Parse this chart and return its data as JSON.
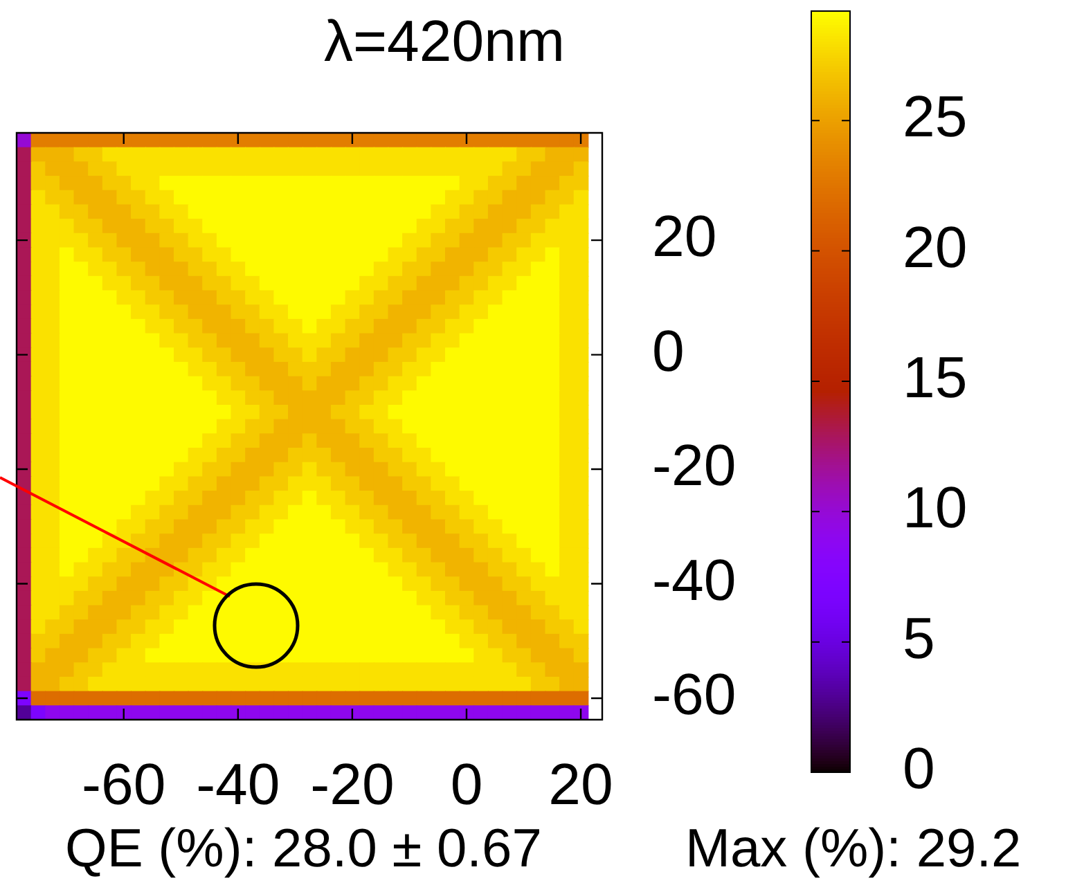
{
  "chart_data": {
    "type": "heatmap",
    "title": "λ=420nm",
    "categories": [
      null,
      null,
      null,
      null,
      null,
      null,
      null,
      "-60",
      null,
      null,
      null,
      null,
      null,
      null,
      null,
      "-40",
      null,
      null,
      null,
      null,
      null,
      null,
      null,
      "-20",
      null,
      null,
      null,
      null,
      null,
      null,
      null,
      "0",
      null,
      null,
      null,
      null,
      null,
      null,
      null,
      "20",
      null
    ],
    "y_categories": [
      null,
      null,
      null,
      null,
      null,
      null,
      null,
      "20",
      null,
      null,
      null,
      null,
      null,
      null,
      null,
      "0",
      null,
      null,
      null,
      null,
      null,
      null,
      null,
      "-20",
      null,
      null,
      null,
      null,
      null,
      null,
      null,
      "-40",
      null,
      null,
      null,
      null,
      null,
      null,
      null,
      "-60",
      null
    ],
    "clim": [
      0,
      29.2
    ],
    "cticks": [
      0,
      5,
      10,
      15,
      20,
      25
    ],
    "annotations": [
      "QE (%): 28.0 ± 0.67",
      "Max (%): 29.2"
    ],
    "cells": [
      [
        10,
        23,
        23,
        23,
        23,
        23,
        23,
        23,
        23,
        23,
        23,
        23,
        23,
        23,
        23,
        23,
        23,
        23,
        23,
        23,
        23,
        23,
        23,
        23,
        23,
        23,
        23,
        23,
        23,
        23,
        23,
        23,
        23,
        23,
        23,
        23,
        23,
        23,
        23,
        23,
        null
      ],
      [
        13,
        26,
        26,
        26,
        27,
        27,
        28,
        28,
        28,
        28,
        28,
        28,
        28,
        28,
        28,
        28,
        28,
        28,
        28,
        28,
        28,
        28,
        28,
        28,
        28,
        28,
        28,
        28,
        28,
        28,
        28,
        28,
        28,
        28,
        28,
        27,
        27,
        26,
        26,
        26,
        null
      ],
      [
        13,
        27,
        26,
        26,
        26,
        27,
        27,
        28,
        28,
        28,
        28,
        28,
        28,
        28,
        28,
        28,
        28,
        28,
        28,
        28,
        28,
        28,
        28,
        28,
        28,
        28,
        28,
        28,
        28,
        28,
        28,
        28,
        28,
        28,
        27,
        27,
        26,
        26,
        26,
        27,
        null
      ],
      [
        13,
        27,
        27,
        26,
        26,
        26,
        27,
        27,
        28,
        28,
        29,
        29,
        29,
        29,
        29,
        29,
        29,
        29,
        29,
        29,
        29,
        29,
        29,
        29,
        29,
        29,
        29,
        29,
        29,
        29,
        29,
        28,
        28,
        27,
        27,
        26,
        26,
        26,
        27,
        27,
        null
      ],
      [
        13,
        28,
        27,
        27,
        26,
        26,
        26,
        27,
        27,
        28,
        28,
        29,
        29,
        29,
        29,
        29,
        29,
        29,
        29,
        29,
        29,
        29,
        29,
        29,
        29,
        29,
        29,
        29,
        29,
        29,
        28,
        28,
        27,
        27,
        26,
        26,
        26,
        27,
        27,
        28,
        null
      ],
      [
        13,
        28,
        28,
        27,
        27,
        26,
        26,
        26,
        27,
        27,
        28,
        28,
        29,
        29,
        29,
        29,
        29,
        29,
        29,
        29,
        29,
        29,
        29,
        29,
        29,
        29,
        29,
        29,
        29,
        28,
        28,
        27,
        27,
        26,
        26,
        26,
        27,
        27,
        28,
        28,
        null
      ],
      [
        13,
        28,
        28,
        28,
        27,
        27,
        26,
        26,
        26,
        27,
        27,
        28,
        28,
        29,
        29,
        29,
        29,
        29,
        29,
        29,
        29,
        29,
        29,
        29,
        29,
        29,
        29,
        29,
        28,
        28,
        27,
        27,
        26,
        26,
        26,
        27,
        27,
        28,
        28,
        28,
        null
      ],
      [
        13,
        28,
        28,
        28,
        28,
        27,
        27,
        26,
        26,
        26,
        27,
        27,
        28,
        28,
        29,
        29,
        29,
        29,
        29,
        29,
        29,
        29,
        29,
        29,
        29,
        29,
        29,
        28,
        28,
        27,
        27,
        26,
        26,
        26,
        27,
        27,
        28,
        28,
        28,
        28,
        null
      ],
      [
        13,
        28,
        28,
        29,
        28,
        28,
        27,
        27,
        26,
        26,
        26,
        27,
        27,
        28,
        28,
        29,
        29,
        29,
        29,
        29,
        29,
        29,
        29,
        29,
        29,
        29,
        28,
        28,
        27,
        27,
        26,
        26,
        26,
        27,
        27,
        28,
        28,
        29,
        28,
        28,
        null
      ],
      [
        13,
        28,
        28,
        29,
        29,
        28,
        28,
        27,
        27,
        26,
        26,
        26,
        27,
        27,
        28,
        28,
        29,
        29,
        29,
        29,
        29,
        29,
        29,
        29,
        29,
        28,
        28,
        27,
        27,
        26,
        26,
        26,
        27,
        27,
        28,
        28,
        29,
        29,
        28,
        28,
        null
      ],
      [
        13,
        28,
        28,
        29,
        29,
        29,
        28,
        28,
        27,
        27,
        26,
        26,
        26,
        27,
        27,
        28,
        28,
        29,
        29,
        29,
        29,
        29,
        29,
        29,
        28,
        28,
        27,
        27,
        26,
        26,
        26,
        27,
        27,
        28,
        28,
        29,
        29,
        29,
        28,
        28,
        null
      ],
      [
        13,
        28,
        28,
        29,
        29,
        29,
        29,
        28,
        28,
        27,
        27,
        26,
        26,
        26,
        27,
        27,
        28,
        28,
        29,
        29,
        29,
        29,
        29,
        28,
        28,
        27,
        27,
        26,
        26,
        26,
        27,
        27,
        28,
        28,
        29,
        29,
        29,
        29,
        28,
        28,
        null
      ],
      [
        13,
        28,
        28,
        29,
        29,
        29,
        29,
        29,
        28,
        28,
        27,
        27,
        26,
        26,
        26,
        27,
        27,
        28,
        28,
        29,
        29,
        29,
        28,
        28,
        27,
        27,
        26,
        26,
        26,
        27,
        27,
        28,
        28,
        29,
        29,
        29,
        29,
        29,
        28,
        28,
        null
      ],
      [
        13,
        28,
        28,
        29,
        29,
        29,
        29,
        29,
        29,
        28,
        28,
        27,
        27,
        26,
        26,
        26,
        27,
        27,
        28,
        28,
        29,
        28,
        28,
        27,
        27,
        26,
        26,
        26,
        27,
        27,
        28,
        28,
        29,
        29,
        29,
        29,
        29,
        29,
        28,
        28,
        null
      ],
      [
        13,
        28,
        28,
        29,
        29,
        29,
        29,
        29,
        29,
        29,
        28,
        28,
        27,
        27,
        26,
        26,
        26,
        27,
        27,
        28,
        28,
        28,
        27,
        27,
        26,
        26,
        26,
        27,
        27,
        28,
        28,
        29,
        29,
        29,
        29,
        29,
        29,
        29,
        28,
        28,
        null
      ],
      [
        13,
        28,
        28,
        29,
        29,
        29,
        29,
        29,
        29,
        29,
        29,
        28,
        28,
        27,
        27,
        26,
        26,
        26,
        27,
        27,
        28,
        27,
        27,
        26,
        26,
        26,
        27,
        27,
        28,
        28,
        29,
        29,
        29,
        29,
        29,
        29,
        29,
        29,
        28,
        28,
        null
      ],
      [
        13,
        28,
        28,
        29,
        29,
        29,
        29,
        29,
        29,
        29,
        29,
        29,
        28,
        28,
        27,
        27,
        26,
        26,
        26,
        27,
        27,
        27,
        26,
        26,
        26,
        27,
        27,
        28,
        28,
        29,
        29,
        29,
        29,
        29,
        29,
        29,
        29,
        29,
        28,
        28,
        null
      ],
      [
        13,
        28,
        28,
        29,
        29,
        29,
        29,
        29,
        29,
        29,
        29,
        29,
        29,
        28,
        28,
        27,
        27,
        26,
        26,
        26,
        27,
        26,
        26,
        26,
        27,
        27,
        28,
        28,
        29,
        29,
        29,
        29,
        29,
        29,
        29,
        29,
        29,
        29,
        28,
        28,
        null
      ],
      [
        13,
        28,
        28,
        29,
        29,
        29,
        29,
        29,
        29,
        29,
        29,
        29,
        29,
        29,
        28,
        28,
        27,
        27,
        26,
        26,
        26,
        26,
        26,
        27,
        27,
        28,
        28,
        29,
        29,
        29,
        29,
        29,
        29,
        29,
        29,
        29,
        29,
        29,
        28,
        28,
        null
      ],
      [
        13,
        28,
        28,
        29,
        29,
        29,
        29,
        29,
        29,
        29,
        29,
        29,
        29,
        29,
        29,
        28,
        28,
        27,
        27,
        26,
        26,
        26,
        27,
        27,
        28,
        28,
        29,
        29,
        29,
        29,
        29,
        29,
        29,
        29,
        29,
        29,
        29,
        29,
        28,
        28,
        null
      ],
      [
        13,
        28,
        28,
        29,
        29,
        29,
        29,
        29,
        29,
        29,
        29,
        29,
        29,
        29,
        28,
        28,
        27,
        27,
        26,
        26,
        26,
        26,
        26,
        27,
        27,
        28,
        28,
        29,
        29,
        29,
        29,
        29,
        29,
        29,
        29,
        29,
        29,
        29,
        28,
        28,
        null
      ],
      [
        13,
        28,
        28,
        29,
        29,
        29,
        29,
        29,
        29,
        29,
        29,
        29,
        29,
        28,
        28,
        27,
        27,
        26,
        26,
        26,
        27,
        26,
        26,
        26,
        27,
        27,
        28,
        28,
        29,
        29,
        29,
        29,
        29,
        29,
        29,
        29,
        29,
        29,
        28,
        28,
        null
      ],
      [
        13,
        28,
        28,
        29,
        29,
        29,
        29,
        29,
        29,
        29,
        29,
        29,
        28,
        28,
        27,
        27,
        26,
        26,
        26,
        27,
        27,
        27,
        26,
        26,
        26,
        27,
        27,
        28,
        28,
        29,
        29,
        29,
        29,
        29,
        29,
        29,
        29,
        29,
        28,
        28,
        null
      ],
      [
        13,
        28,
        28,
        29,
        29,
        29,
        29,
        29,
        29,
        29,
        29,
        28,
        28,
        27,
        27,
        26,
        26,
        26,
        27,
        27,
        28,
        27,
        27,
        26,
        26,
        26,
        27,
        27,
        28,
        28,
        29,
        29,
        29,
        29,
        29,
        29,
        29,
        29,
        28,
        28,
        null
      ],
      [
        13,
        28,
        28,
        29,
        29,
        29,
        29,
        29,
        29,
        29,
        28,
        28,
        27,
        27,
        26,
        26,
        26,
        27,
        27,
        28,
        28,
        28,
        27,
        27,
        26,
        26,
        26,
        27,
        27,
        28,
        28,
        29,
        29,
        29,
        29,
        29,
        29,
        29,
        28,
        28,
        null
      ],
      [
        13,
        28,
        28,
        29,
        29,
        29,
        29,
        29,
        29,
        28,
        28,
        27,
        27,
        26,
        26,
        26,
        27,
        27,
        28,
        28,
        29,
        28,
        28,
        27,
        27,
        26,
        26,
        26,
        27,
        27,
        28,
        28,
        29,
        29,
        29,
        29,
        29,
        29,
        28,
        28,
        null
      ],
      [
        13,
        28,
        28,
        29,
        29,
        29,
        29,
        29,
        28,
        28,
        27,
        27,
        26,
        26,
        26,
        27,
        27,
        28,
        28,
        29,
        29,
        29,
        28,
        28,
        27,
        27,
        26,
        26,
        26,
        27,
        27,
        28,
        28,
        29,
        29,
        29,
        29,
        29,
        28,
        28,
        null
      ],
      [
        13,
        28,
        28,
        29,
        29,
        29,
        29,
        28,
        28,
        27,
        27,
        26,
        26,
        26,
        27,
        27,
        28,
        28,
        29,
        29,
        29,
        29,
        29,
        28,
        28,
        27,
        27,
        26,
        26,
        26,
        27,
        27,
        28,
        28,
        29,
        29,
        29,
        29,
        28,
        28,
        null
      ],
      [
        13,
        28,
        28,
        29,
        29,
        29,
        28,
        28,
        27,
        27,
        26,
        26,
        26,
        27,
        27,
        28,
        28,
        29,
        29,
        29,
        29,
        29,
        29,
        29,
        28,
        28,
        27,
        27,
        26,
        26,
        26,
        27,
        27,
        28,
        28,
        29,
        29,
        29,
        28,
        28,
        null
      ],
      [
        13,
        28,
        28,
        29,
        29,
        28,
        28,
        27,
        27,
        26,
        26,
        26,
        27,
        27,
        28,
        28,
        29,
        29,
        29,
        29,
        29,
        29,
        29,
        29,
        29,
        28,
        28,
        27,
        27,
        26,
        26,
        26,
        27,
        27,
        28,
        28,
        29,
        29,
        28,
        28,
        null
      ],
      [
        13,
        28,
        28,
        29,
        28,
        28,
        27,
        27,
        26,
        26,
        26,
        27,
        27,
        28,
        28,
        29,
        29,
        29,
        29,
        29,
        29,
        29,
        29,
        29,
        29,
        29,
        28,
        28,
        27,
        27,
        26,
        26,
        26,
        27,
        27,
        28,
        28,
        29,
        28,
        28,
        null
      ],
      [
        13,
        28,
        28,
        28,
        28,
        27,
        27,
        26,
        26,
        26,
        27,
        27,
        28,
        28,
        29,
        29,
        29,
        29,
        29,
        29,
        29,
        29,
        29,
        29,
        29,
        29,
        29,
        28,
        28,
        27,
        27,
        26,
        26,
        26,
        27,
        27,
        28,
        28,
        28,
        28,
        null
      ],
      [
        13,
        28,
        28,
        28,
        27,
        27,
        26,
        26,
        26,
        27,
        27,
        28,
        28,
        29,
        29,
        29,
        29,
        29,
        29,
        29,
        29,
        29,
        29,
        29,
        29,
        29,
        29,
        29,
        28,
        28,
        27,
        27,
        26,
        26,
        26,
        27,
        27,
        28,
        28,
        28,
        null
      ],
      [
        13,
        28,
        28,
        27,
        27,
        26,
        26,
        26,
        27,
        27,
        28,
        28,
        29,
        29,
        29,
        29,
        29,
        29,
        29,
        29,
        29,
        29,
        29,
        29,
        29,
        29,
        29,
        29,
        29,
        28,
        28,
        27,
        27,
        26,
        26,
        26,
        27,
        27,
        28,
        28,
        null
      ],
      [
        13,
        28,
        27,
        27,
        26,
        26,
        26,
        27,
        27,
        28,
        28,
        29,
        29,
        29,
        29,
        29,
        29,
        29,
        29,
        29,
        29,
        29,
        29,
        29,
        29,
        29,
        29,
        29,
        29,
        29,
        28,
        28,
        27,
        27,
        26,
        26,
        26,
        27,
        27,
        28,
        null
      ],
      [
        13,
        27,
        27,
        26,
        26,
        26,
        27,
        27,
        28,
        28,
        29,
        29,
        29,
        29,
        29,
        29,
        29,
        29,
        29,
        29,
        29,
        29,
        29,
        29,
        29,
        29,
        29,
        29,
        29,
        29,
        29,
        28,
        28,
        27,
        27,
        26,
        26,
        26,
        27,
        27,
        null
      ],
      [
        13,
        27,
        26,
        26,
        26,
        27,
        27,
        28,
        28,
        29,
        29,
        29,
        29,
        29,
        29,
        29,
        29,
        29,
        29,
        29,
        29,
        29,
        29,
        29,
        29,
        29,
        29,
        29,
        29,
        29,
        29,
        29,
        28,
        28,
        27,
        27,
        26,
        26,
        26,
        27,
        null
      ],
      [
        13,
        26,
        26,
        26,
        27,
        27,
        28,
        28,
        28,
        28,
        28,
        28,
        28,
        28,
        28,
        28,
        28,
        28,
        28,
        28,
        28,
        28,
        28,
        28,
        28,
        28,
        28,
        28,
        28,
        28,
        28,
        28,
        28,
        28,
        28,
        27,
        27,
        26,
        26,
        26,
        null
      ],
      [
        13,
        26,
        26,
        27,
        27,
        28,
        28,
        28,
        28,
        28,
        28,
        28,
        28,
        28,
        28,
        28,
        28,
        28,
        28,
        28,
        28,
        28,
        28,
        28,
        28,
        28,
        28,
        28,
        28,
        28,
        28,
        28,
        28,
        28,
        28,
        28,
        27,
        27,
        26,
        26,
        null
      ],
      [
        7,
        22,
        22,
        22,
        22,
        22,
        22,
        22,
        22,
        22,
        22,
        22,
        22,
        22,
        22,
        22,
        22,
        22,
        22,
        22,
        22,
        22,
        22,
        22,
        22,
        22,
        22,
        22,
        22,
        22,
        22,
        22,
        22,
        22,
        22,
        22,
        22,
        22,
        22,
        22,
        null
      ],
      [
        3,
        7,
        9,
        9,
        9,
        9,
        9,
        9,
        9,
        9,
        9,
        9,
        9,
        9,
        9,
        9,
        9,
        9,
        9,
        9,
        9,
        9,
        9,
        9,
        9,
        9,
        9,
        9,
        9,
        9,
        9,
        9,
        9,
        9,
        9,
        9,
        9,
        9,
        9,
        9,
        null
      ]
    ]
  }
}
